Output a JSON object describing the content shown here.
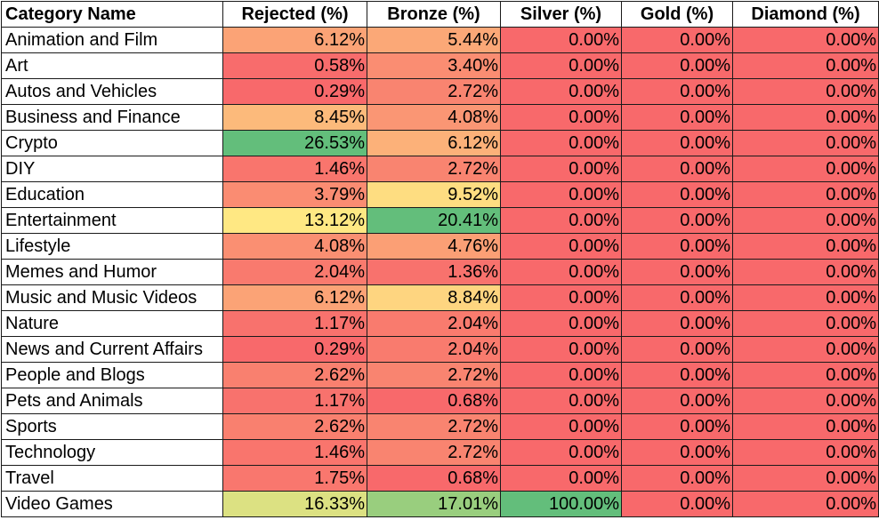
{
  "chart_data": {
    "type": "table",
    "columns": [
      "Category Name",
      "Rejected (%)",
      "Bronze (%)",
      "Silver (%)",
      "Gold (%)",
      "Diamond (%)"
    ],
    "rows": [
      {
        "category": "Animation and Film",
        "values": [
          "6.12%",
          "5.44%",
          "0.00%",
          "0.00%",
          "0.00%"
        ]
      },
      {
        "category": "Art",
        "values": [
          "0.58%",
          "3.40%",
          "0.00%",
          "0.00%",
          "0.00%"
        ]
      },
      {
        "category": "Autos and Vehicles",
        "values": [
          "0.29%",
          "2.72%",
          "0.00%",
          "0.00%",
          "0.00%"
        ]
      },
      {
        "category": "Business and Finance",
        "values": [
          "8.45%",
          "4.08%",
          "0.00%",
          "0.00%",
          "0.00%"
        ]
      },
      {
        "category": "Crypto",
        "values": [
          "26.53%",
          "6.12%",
          "0.00%",
          "0.00%",
          "0.00%"
        ]
      },
      {
        "category": "DIY",
        "values": [
          "1.46%",
          "2.72%",
          "0.00%",
          "0.00%",
          "0.00%"
        ]
      },
      {
        "category": "Education",
        "values": [
          "3.79%",
          "9.52%",
          "0.00%",
          "0.00%",
          "0.00%"
        ]
      },
      {
        "category": "Entertainment",
        "values": [
          "13.12%",
          "20.41%",
          "0.00%",
          "0.00%",
          "0.00%"
        ]
      },
      {
        "category": "Lifestyle",
        "values": [
          "4.08%",
          "4.76%",
          "0.00%",
          "0.00%",
          "0.00%"
        ]
      },
      {
        "category": "Memes and Humor",
        "values": [
          "2.04%",
          "1.36%",
          "0.00%",
          "0.00%",
          "0.00%"
        ]
      },
      {
        "category": "Music and Music Videos",
        "values": [
          "6.12%",
          "8.84%",
          "0.00%",
          "0.00%",
          "0.00%"
        ]
      },
      {
        "category": "Nature",
        "values": [
          "1.17%",
          "2.04%",
          "0.00%",
          "0.00%",
          "0.00%"
        ]
      },
      {
        "category": "News and Current Affairs",
        "values": [
          "0.29%",
          "2.04%",
          "0.00%",
          "0.00%",
          "0.00%"
        ]
      },
      {
        "category": "People and Blogs",
        "values": [
          "2.62%",
          "2.72%",
          "0.00%",
          "0.00%",
          "0.00%"
        ]
      },
      {
        "category": "Pets and Animals",
        "values": [
          "1.17%",
          "0.68%",
          "0.00%",
          "0.00%",
          "0.00%"
        ]
      },
      {
        "category": "Sports",
        "values": [
          "2.62%",
          "2.72%",
          "0.00%",
          "0.00%",
          "0.00%"
        ]
      },
      {
        "category": "Technology",
        "values": [
          "1.46%",
          "2.72%",
          "0.00%",
          "0.00%",
          "0.00%"
        ]
      },
      {
        "category": "Travel",
        "values": [
          "1.75%",
          "0.68%",
          "0.00%",
          "0.00%",
          "0.00%"
        ]
      },
      {
        "category": "Video Games",
        "values": [
          "16.33%",
          "17.01%",
          "100.00%",
          "0.00%",
          "0.00%"
        ]
      }
    ],
    "color_scale": {
      "low": "#f8696b",
      "mid": "#ffeb84",
      "high": "#63be7b"
    }
  }
}
